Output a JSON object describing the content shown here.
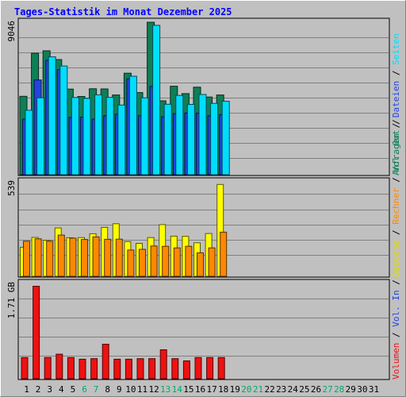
{
  "chart_data": {
    "type": "bar",
    "title": "Tages-Statistik im Monat Dezember 2025",
    "categories": [
      "1",
      "2",
      "3",
      "4",
      "5",
      "6",
      "7",
      "8",
      "9",
      "10",
      "11",
      "12",
      "13",
      "14",
      "15",
      "16",
      "17",
      "18",
      "19",
      "20",
      "21",
      "22",
      "23",
      "24",
      "25",
      "26",
      "27",
      "28",
      "29",
      "30",
      "31"
    ],
    "weekend_days": [
      6,
      7,
      13,
      14,
      20,
      21,
      27,
      28
    ],
    "panels": [
      {
        "id": "top",
        "max_label": "9046",
        "ylim": [
          0,
          9046
        ],
        "grid": true,
        "series": [
          {
            "name": "Anfragen",
            "color": "#0f7f55",
            "values": [
              4650,
              7210,
              7350,
              6830,
              5080,
              4640,
              5100,
              5090,
              4730,
              6020,
              4870,
              9046,
              4380,
              5250,
              4810,
              5190,
              4610,
              4730
            ]
          },
          {
            "name": "Dateien",
            "color": "#2244dd",
            "values": [
              3300,
              5620,
              6790,
              6240,
              3400,
              3410,
              3300,
              3500,
              3590,
              5690,
              3500,
              5240,
              3440,
              3620,
              3660,
              3650,
              3490,
              3570
            ]
          },
          {
            "name": "Seiten",
            "color": "#00ddff",
            "values": [
              3820,
              4560,
              6990,
              6450,
              4580,
              4530,
              4740,
              4590,
              4130,
              5840,
              4560,
              8860,
              4180,
              4700,
              4170,
              4760,
              4230,
              4360
            ]
          }
        ]
      },
      {
        "id": "middle",
        "max_label": "539",
        "ylim": [
          0,
          539
        ],
        "grid": true,
        "series": [
          {
            "name": "Besuche",
            "color": "#ffff00",
            "values": [
              166,
              222,
              205,
              276,
              220,
              221,
              243,
              279,
              300,
              198,
              188,
              221,
              295,
              229,
              228,
              191,
              244,
              524
            ]
          },
          {
            "name": "Rechner",
            "color": "#ff8800",
            "values": [
              200,
              214,
              200,
              235,
              218,
              210,
              225,
              211,
              212,
              150,
              154,
              173,
              171,
              162,
              171,
              134,
              162,
              252
            ]
          }
        ]
      },
      {
        "id": "bottom",
        "max_label": "1.71 GB",
        "ylim": [
          0,
          1.71
        ],
        "unit": "GB",
        "grid": true,
        "series": [
          {
            "name": "Volumen",
            "color": "#ee1111",
            "values": [
              0.38,
              1.66,
              0.38,
              0.44,
              0.38,
              0.35,
              0.36,
              0.62,
              0.35,
              0.35,
              0.36,
              0.36,
              0.52,
              0.36,
              0.32,
              0.38,
              0.38,
              0.38
            ]
          }
        ]
      }
    ],
    "legend_side": [
      {
        "id": "top",
        "entries": [
          {
            "text": "Anfragen",
            "color": "#0f7f55"
          },
          {
            "text": " / ",
            "color": "#000000"
          },
          {
            "text": "Dateien",
            "color": "#2244dd"
          },
          {
            "text": " / ",
            "color": "#000000"
          },
          {
            "text": "Seiten",
            "color": "#00ddff"
          }
        ]
      },
      {
        "id": "middle",
        "entries": [
          {
            "text": "Besuche",
            "color": "#dddd00"
          },
          {
            "text": " / ",
            "color": "#000000"
          },
          {
            "text": "Rechner",
            "color": "#ff8800"
          },
          {
            "text": " / ",
            "color": "#000000"
          },
          {
            "text": "Vol. Out",
            "color": "#0f7f55"
          },
          {
            "text": " / ",
            "color": "#000000"
          }
        ]
      },
      {
        "id": "bottom",
        "entries": [
          {
            "text": "Volumen",
            "color": "#ee1111"
          },
          {
            "text": " / ",
            "color": "#000000"
          },
          {
            "text": "Vol. In",
            "color": "#2244dd"
          },
          {
            "text": " / ",
            "color": "#000000"
          }
        ]
      }
    ]
  },
  "colors": {
    "frame_bg": "#c0c0c0",
    "plot_bg": "#c0c0c0",
    "grid": "#808080",
    "title": "#0000ff",
    "weekday_label": "#000000",
    "weekend_label": "#00aa66"
  }
}
